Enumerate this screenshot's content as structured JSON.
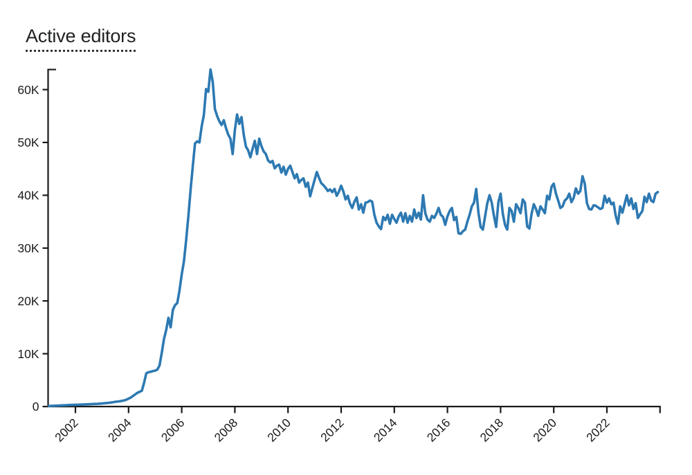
{
  "title": "Active editors",
  "chart_data": {
    "type": "line",
    "title": "Active editors",
    "xlabel": "",
    "ylabel": "",
    "legend": null,
    "grid": false,
    "x_start_month": "2001-01",
    "x_end_month": "2023-12",
    "frequency": "monthly",
    "values_unit": "thousands of active editors",
    "xlim_years": [
      2001,
      2024
    ],
    "ylim_thousands": [
      0,
      63.8
    ],
    "line_color": "#2d79b2",
    "axis_color": "#1a1a1a",
    "label_color": "#1b1b1b",
    "background_color": "#ffffff",
    "x_ticks": [
      {
        "year": 2002,
        "label": "2002"
      },
      {
        "year": 2004,
        "label": "2004"
      },
      {
        "year": 2006,
        "label": "2006"
      },
      {
        "year": 2008,
        "label": "2008"
      },
      {
        "year": 2010,
        "label": "2010"
      },
      {
        "year": 2012,
        "label": "2012"
      },
      {
        "year": 2014,
        "label": "2014"
      },
      {
        "year": 2016,
        "label": "2016"
      },
      {
        "year": 2018,
        "label": "2018"
      },
      {
        "year": 2020,
        "label": "2020"
      },
      {
        "year": 2022,
        "label": "2022"
      }
    ],
    "y_ticks": [
      {
        "value": 0,
        "label": "0"
      },
      {
        "value": 10,
        "label": "10K"
      },
      {
        "value": 20,
        "label": "20K"
      },
      {
        "value": 30,
        "label": "30K"
      },
      {
        "value": 40,
        "label": "40K"
      },
      {
        "value": 50,
        "label": "50K"
      },
      {
        "value": 60,
        "label": "60K"
      }
    ],
    "values_thousands": [
      0.1,
      0.12,
      0.14,
      0.16,
      0.18,
      0.2,
      0.22,
      0.24,
      0.26,
      0.28,
      0.3,
      0.32,
      0.33,
      0.35,
      0.36,
      0.38,
      0.4,
      0.42,
      0.44,
      0.46,
      0.48,
      0.5,
      0.52,
      0.55,
      0.58,
      0.62,
      0.66,
      0.7,
      0.76,
      0.82,
      0.9,
      0.95,
      1.0,
      1.08,
      1.16,
      1.3,
      1.5,
      1.7,
      2.0,
      2.3,
      2.6,
      2.8,
      3.0,
      4.5,
      6.3,
      6.5,
      6.6,
      6.7,
      6.8,
      7.0,
      7.8,
      10.2,
      12.8,
      14.5,
      16.8,
      15.0,
      18.3,
      19.2,
      19.6,
      22.0,
      25.0,
      27.5,
      31.5,
      36.0,
      41.0,
      45.5,
      49.8,
      50.2,
      50.0,
      53.0,
      55.2,
      60.1,
      59.6,
      63.8,
      61.5,
      56.3,
      55.0,
      54.0,
      53.3,
      54.2,
      52.7,
      51.5,
      50.7,
      47.8,
      52.3,
      55.3,
      53.5,
      54.8,
      51.5,
      49.2,
      48.5,
      47.2,
      48.8,
      50.3,
      47.8,
      50.7,
      49.3,
      48.3,
      47.8,
      46.6,
      46.2,
      46.5,
      45.1,
      45.6,
      45.8,
      44.3,
      45.4,
      43.9,
      45.0,
      45.6,
      44.4,
      43.2,
      44.0,
      42.4,
      42.9,
      43.2,
      41.6,
      42.4,
      39.8,
      41.4,
      42.9,
      44.4,
      43.3,
      42.3,
      41.9,
      41.4,
      40.8,
      41.1,
      40.6,
      41.2,
      39.9,
      40.7,
      41.8,
      40.7,
      39.2,
      39.9,
      38.4,
      37.6,
      38.8,
      39.6,
      37.3,
      38.3,
      36.7,
      38.6,
      38.7,
      39.0,
      38.8,
      36.3,
      34.8,
      34.1,
      33.6,
      35.9,
      35.3,
      36.3,
      34.6,
      36.3,
      35.5,
      34.8,
      36.0,
      36.7,
      35.0,
      36.6,
      34.8,
      36.1,
      35.0,
      37.3,
      35.7,
      36.7,
      35.4,
      40.0,
      36.6,
      35.4,
      35.0,
      36.1,
      35.7,
      36.5,
      37.6,
      36.3,
      35.9,
      34.4,
      36.0,
      37.0,
      37.6,
      35.3,
      35.9,
      32.8,
      32.7,
      33.2,
      33.5,
      35.0,
      36.3,
      37.9,
      38.6,
      41.2,
      36.7,
      34.0,
      33.5,
      36.0,
      38.5,
      40.0,
      38.6,
      36.1,
      34.0,
      38.7,
      40.3,
      36.5,
      34.4,
      33.5,
      37.6,
      37.0,
      35.0,
      38.3,
      37.6,
      36.6,
      39.2,
      38.6,
      34.1,
      33.7,
      36.5,
      38.3,
      37.4,
      36.1,
      37.9,
      37.3,
      36.6,
      39.9,
      39.2,
      41.6,
      42.2,
      40.3,
      39.0,
      37.6,
      37.9,
      39.0,
      39.4,
      40.3,
      38.7,
      39.5,
      41.3,
      40.3,
      40.8,
      43.6,
      42.2,
      38.5,
      37.4,
      37.3,
      38.1,
      38.0,
      37.7,
      37.4,
      37.6,
      39.9,
      38.6,
      39.4,
      38.3,
      38.6,
      36.1,
      34.6,
      37.9,
      36.7,
      38.3,
      40.0,
      38.1,
      39.4,
      37.4,
      38.5,
      35.7,
      36.4,
      37.0,
      39.7,
      38.7,
      40.3,
      39.0,
      38.7,
      40.3,
      40.6
    ]
  }
}
